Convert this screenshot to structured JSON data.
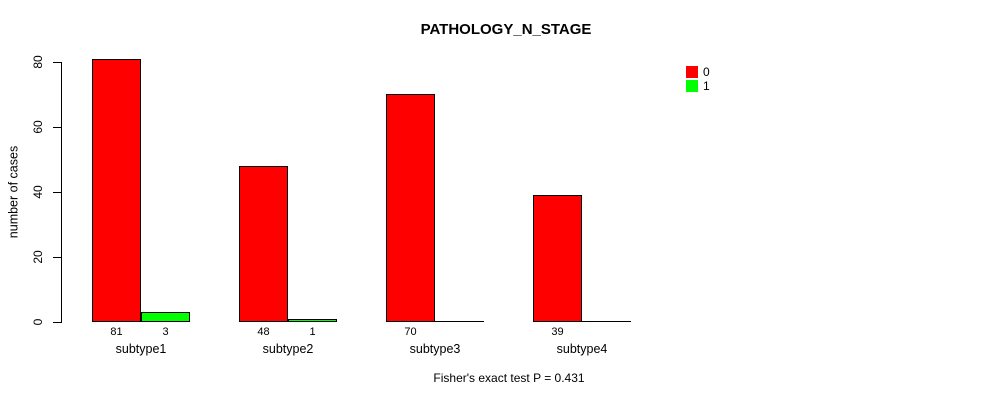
{
  "chart_data": {
    "type": "bar",
    "title": "PATHOLOGY_N_STAGE",
    "ylabel": "number of cases",
    "xlabel": "",
    "annotation": "Fisher's exact test P = 0.431",
    "categories": [
      "subtype1",
      "subtype2",
      "subtype3",
      "subtype4"
    ],
    "series": [
      {
        "name": "0",
        "color": "#FF0000",
        "values": [
          81,
          48,
          70,
          39
        ]
      },
      {
        "name": "1",
        "color": "#00FF00",
        "values": [
          3,
          1,
          0,
          0
        ]
      }
    ],
    "yticks": [
      0,
      20,
      40,
      60,
      80
    ],
    "ylim": [
      0,
      80
    ],
    "grid": false,
    "legend_position": "top-right",
    "bar_value_labels": [
      "81",
      "3",
      "48",
      "1",
      "70",
      "39"
    ]
  }
}
